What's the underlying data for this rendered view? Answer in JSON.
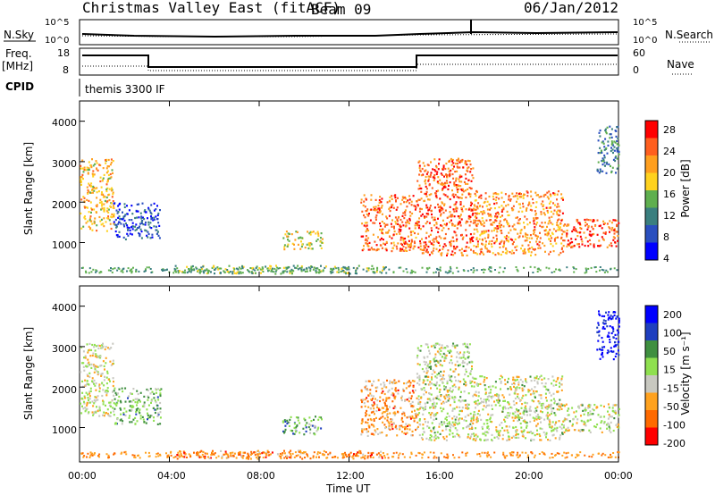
{
  "title": {
    "station": "Christmas Valley East (fitACF)",
    "beam": "Beam 09",
    "date": "06/Jan/2012"
  },
  "header": {
    "nsky_label": "N.Sky",
    "nsearch_label": "N.Search",
    "noise_ticks_left": [
      "10^5",
      "10^0"
    ],
    "noise_ticks_right": [
      "10^5",
      "10^0"
    ],
    "freq_label": "Freq.",
    "freq_unit": "[MHz]",
    "freq_ticks": [
      "18",
      "8"
    ],
    "nave_label": "Nave",
    "nave_ticks": [
      "60",
      "0"
    ],
    "cpid_label": "CPID",
    "cpid_text": "themis 3300 IF"
  },
  "colors": {
    "power": [
      "#0000ff",
      "#2a4fbf",
      "#3a7f7f",
      "#5faf4f",
      "#ffd21f",
      "#ff9f1f",
      "#ff5f1f",
      "#ff0000"
    ],
    "velocity": [
      "#ff0000",
      "#ff6a00",
      "#ffa21f",
      "#c8c8c0",
      "#8fe04f",
      "#3f8f3f",
      "#1f3fbf",
      "#0000ff"
    ]
  },
  "chart_data": [
    {
      "type": "heatmap",
      "name": "power",
      "ylabel": "Slant Range [km]",
      "yticks": [
        "1000",
        "2000",
        "3000",
        "4000"
      ],
      "ylim": [
        150,
        4500
      ],
      "xlim": [
        0,
        24
      ],
      "xticks": [
        "00:00",
        "04:00",
        "08:00",
        "12:00",
        "16:00",
        "20:00",
        "00:00"
      ],
      "colorbar": {
        "label": "Power [dB]",
        "ticks": [
          "28",
          "24",
          "20",
          "16",
          "12",
          "8",
          "4"
        ],
        "range": [
          0,
          30
        ]
      },
      "regions": [
        {
          "t": [
            0.0,
            1.5
          ],
          "r": [
            1300,
            3100
          ],
          "level": 0.62
        },
        {
          "t": [
            1.5,
            3.6
          ],
          "r": [
            1100,
            2000
          ],
          "level": 0.2
        },
        {
          "t": [
            4.2,
            13.5
          ],
          "r": [
            250,
            450
          ],
          "level": 0.45
        },
        {
          "t": [
            9.0,
            10.8
          ],
          "r": [
            850,
            1300
          ],
          "level": 0.55
        },
        {
          "t": [
            12.5,
            15.0
          ],
          "r": [
            800,
            2200
          ],
          "level": 0.78
        },
        {
          "t": [
            15.0,
            17.5
          ],
          "r": [
            700,
            3100
          ],
          "level": 0.8
        },
        {
          "t": [
            17.5,
            21.5
          ],
          "r": [
            700,
            2300
          ],
          "level": 0.72
        },
        {
          "t": [
            21.5,
            24.0
          ],
          "r": [
            900,
            1600
          ],
          "level": 0.82
        },
        {
          "t": [
            23.0,
            24.0
          ],
          "r": [
            2700,
            3900
          ],
          "level": 0.3
        }
      ]
    },
    {
      "type": "heatmap",
      "name": "velocity",
      "ylabel": "Slant Range [km]",
      "xlabel": "Time UT",
      "yticks": [
        "1000",
        "2000",
        "3000",
        "4000"
      ],
      "ylim": [
        150,
        4500
      ],
      "xlim": [
        0,
        24
      ],
      "xticks": [
        "00:00",
        "04:00",
        "08:00",
        "12:00",
        "16:00",
        "20:00",
        "00:00"
      ],
      "colorbar": {
        "label": "Velocity [m s⁻¹]",
        "ticks": [
          "200",
          "100",
          "50",
          "15",
          "-15",
          "-50",
          "-100",
          "-200"
        ],
        "range": [
          -250,
          250
        ]
      },
      "regions": [
        {
          "t": [
            0.0,
            1.5
          ],
          "r": [
            1300,
            3100
          ],
          "level": 0.45
        },
        {
          "t": [
            1.5,
            3.6
          ],
          "r": [
            1100,
            2000
          ],
          "level": 0.6
        },
        {
          "t": [
            4.2,
            13.5
          ],
          "r": [
            250,
            450
          ],
          "level": 0.25
        },
        {
          "t": [
            9.0,
            10.8
          ],
          "r": [
            850,
            1300
          ],
          "level": 0.62
        },
        {
          "t": [
            12.5,
            15.0
          ],
          "r": [
            800,
            2200
          ],
          "level": 0.28
        },
        {
          "t": [
            15.0,
            17.5
          ],
          "r": [
            700,
            3100
          ],
          "level": 0.48
        },
        {
          "t": [
            17.5,
            21.5
          ],
          "r": [
            700,
            2300
          ],
          "level": 0.47
        },
        {
          "t": [
            21.5,
            24.0
          ],
          "r": [
            900,
            1600
          ],
          "level": 0.47
        },
        {
          "t": [
            23.0,
            24.0
          ],
          "r": [
            2700,
            3900
          ],
          "level": 0.95
        }
      ]
    }
  ]
}
